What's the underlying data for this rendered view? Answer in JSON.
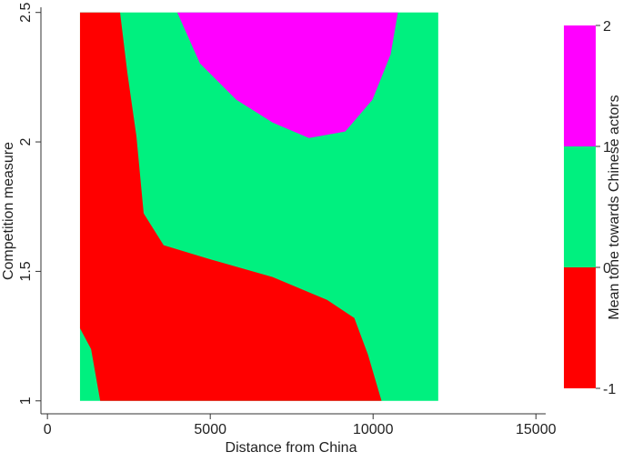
{
  "chart_data": {
    "type": "contour",
    "x_label": "Distance from China",
    "y_label": "Competition measure",
    "colorbar_label": "Mean tone towards Chinese actors",
    "xlim": [
      -200,
      15300
    ],
    "xticks": [
      0,
      5000,
      10000,
      15000
    ],
    "ylim": [
      0.95,
      2.52
    ],
    "yticks": [
      1,
      1.5,
      2,
      2.5
    ],
    "domain_x": [
      1000,
      12000
    ],
    "domain_y": [
      1,
      2.5
    ],
    "background_color": "#00f07f",
    "regions": [
      {
        "color": "#ff0000",
        "x": [
          1000,
          2230,
          2453,
          2732,
          2955,
          3568,
          4962,
          6914,
          8587,
          9423,
          9841,
          10259,
          1620,
          1340,
          1000
        ],
        "y": [
          2.5,
          2.5,
          2.268,
          2.022,
          1.724,
          1.601,
          1.548,
          1.478,
          1.39,
          1.32,
          1.179,
          1,
          1,
          1.2,
          1.28
        ]
      },
      {
        "color": "#ff00ff",
        "x": [
          3987,
          4684,
          5799,
          6914,
          8029,
          9144,
          9981,
          10538,
          10761
        ],
        "y": [
          2.5,
          2.303,
          2.163,
          2.075,
          2.015,
          2.04,
          2.163,
          2.338,
          2.5
        ]
      }
    ],
    "levels": [
      -1,
      0,
      1,
      2
    ],
    "level_colors": [
      "#ff0000",
      "#00f07f",
      "#ff00ff"
    ]
  }
}
